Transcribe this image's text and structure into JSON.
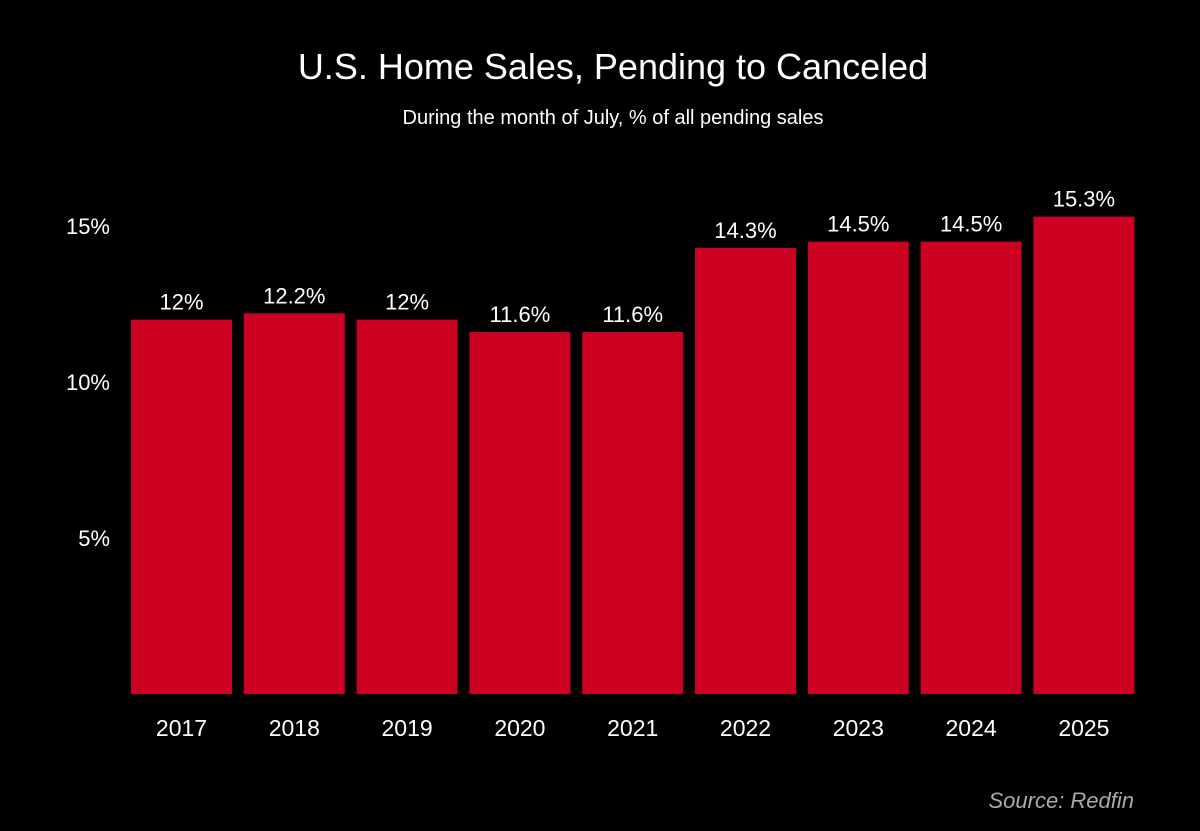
{
  "chart_data": {
    "type": "bar",
    "title": "U.S. Home Sales, Pending to Canceled",
    "subtitle": "During the month of July, % of all pending sales",
    "xlabel": "",
    "ylabel": "",
    "categories": [
      "2017",
      "2018",
      "2019",
      "2020",
      "2021",
      "2022",
      "2023",
      "2024",
      "2025"
    ],
    "values": [
      12,
      12.2,
      12,
      11.6,
      11.6,
      14.3,
      14.5,
      14.5,
      15.3
    ],
    "data_labels": [
      "12%",
      "12.2%",
      "12%",
      "11.6%",
      "11.6%",
      "14.3%",
      "14.5%",
      "14.5%",
      "15.3%"
    ],
    "yticks": [
      5,
      10,
      15
    ],
    "ytick_labels": [
      "5%",
      "10%",
      "15%"
    ],
    "ylim": [
      0,
      16
    ],
    "grid": false,
    "bar_color": "#CC0020",
    "source": "Source: Redfin"
  }
}
